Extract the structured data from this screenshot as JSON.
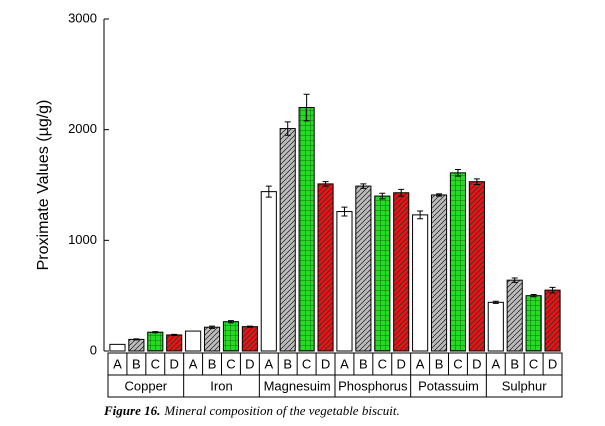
{
  "chart_data": {
    "type": "bar",
    "ylabel": "Proximate Values  (µg/g)",
    "caption_label": "Figure 16.",
    "caption": "Mineral composition of the vegetable biscuit.",
    "categories": [
      "Copper",
      "Iron",
      "Magnesuim",
      "Phosphorus",
      "Potassuim",
      "Sulphur"
    ],
    "series": [
      {
        "name": "A",
        "color": "#ffffff",
        "hatch": "none",
        "values": [
          60,
          180,
          1440,
          1260,
          1230,
          440
        ],
        "errors": [
          0,
          0,
          50,
          40,
          35,
          10
        ]
      },
      {
        "name": "B",
        "color": "#bdbdbd",
        "hatch": "diagonal",
        "values": [
          105,
          215,
          2010,
          1490,
          1410,
          640
        ],
        "errors": [
          5,
          10,
          60,
          20,
          10,
          20
        ]
      },
      {
        "name": "C",
        "color": "#22dd22",
        "hatch": "grid",
        "values": [
          170,
          265,
          2200,
          1400,
          1610,
          500
        ],
        "errors": [
          5,
          10,
          120,
          25,
          30,
          10
        ]
      },
      {
        "name": "D",
        "color": "#ee1111",
        "hatch": "diagonal",
        "values": [
          145,
          220,
          1510,
          1430,
          1530,
          550
        ],
        "errors": [
          5,
          5,
          20,
          30,
          25,
          25
        ]
      }
    ],
    "ylim": [
      0,
      3000
    ],
    "yticks": [
      0,
      1000,
      2000,
      3000
    ]
  }
}
